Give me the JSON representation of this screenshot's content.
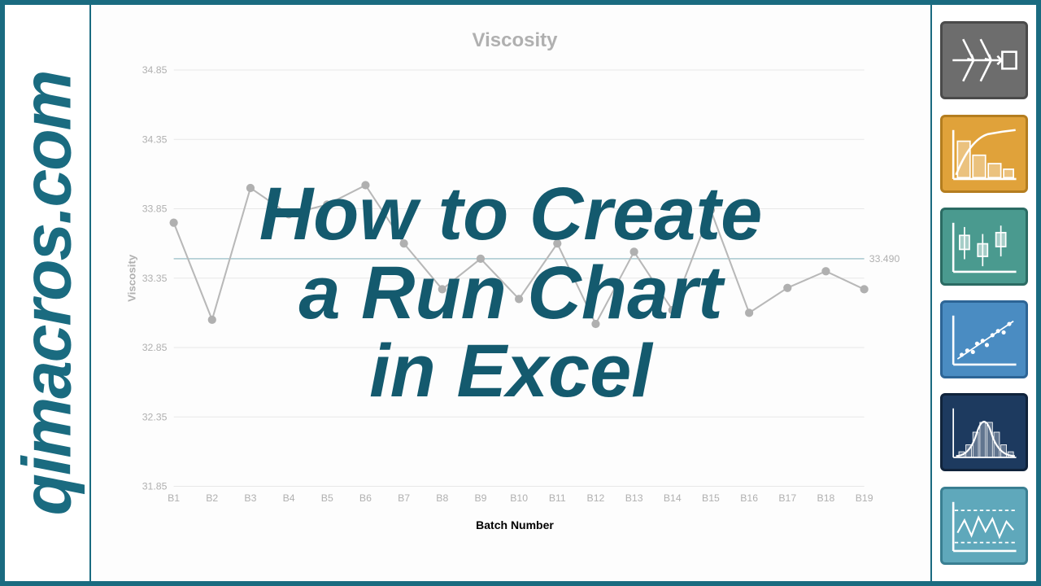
{
  "left_text": "qimacros.com",
  "overlay": {
    "line1": "How to Create",
    "line2": "a Run Chart",
    "line3": "in Excel"
  },
  "colors": {
    "frame": "#1a6b80",
    "overlay_text": "#145a6e",
    "chart_grid": "#e8e8e8",
    "chart_line": "#b8b8b8",
    "chart_marker": "#b0b0b0",
    "chart_text": "#b0b0b0",
    "mean_line": "#a8c8d0"
  },
  "chart": {
    "type": "line",
    "title": "Viscosity",
    "title_fontsize": 24,
    "ylabel": "Viscosity",
    "xlabel": "Batch Number",
    "label_fontsize": 13,
    "ylim": [
      31.85,
      34.85
    ],
    "ytick_step": 0.5,
    "yticks": [
      "34.85",
      "34.35",
      "33.85",
      "33.35",
      "32.85",
      "32.35",
      "31.85"
    ],
    "categories": [
      "B1",
      "B2",
      "B3",
      "B4",
      "B5",
      "B6",
      "B7",
      "B8",
      "B9",
      "B10",
      "B11",
      "B12",
      "B13",
      "B14",
      "B15",
      "B16",
      "B17",
      "B18",
      "B19"
    ],
    "values": [
      33.75,
      33.05,
      34.0,
      33.81,
      33.88,
      34.02,
      33.6,
      33.27,
      33.49,
      33.2,
      33.6,
      33.02,
      33.54,
      33.12,
      33.84,
      33.1,
      33.28,
      33.4,
      33.27
    ],
    "mean_line": 33.49,
    "mean_label": "33.490",
    "line_width": 2,
    "marker": "circle",
    "marker_size": 5,
    "background_color": "#ffffff",
    "grid": "horizontal"
  },
  "thumbnails": [
    {
      "name": "fishbone-icon",
      "bg": "#6d6d6d",
      "border": "#4a4a4a"
    },
    {
      "name": "pareto-icon",
      "bg": "#e0a23a",
      "border": "#b47d1f"
    },
    {
      "name": "boxplot-icon",
      "bg": "#4a9a8f",
      "border": "#2b6b63"
    },
    {
      "name": "scatter-icon",
      "bg": "#4a8cc2",
      "border": "#2d6596"
    },
    {
      "name": "bellcurve-icon",
      "bg": "#1d3a5f",
      "border": "#10233b"
    },
    {
      "name": "runchart-icon",
      "bg": "#5fa8bb",
      "border": "#3a7f92"
    }
  ]
}
